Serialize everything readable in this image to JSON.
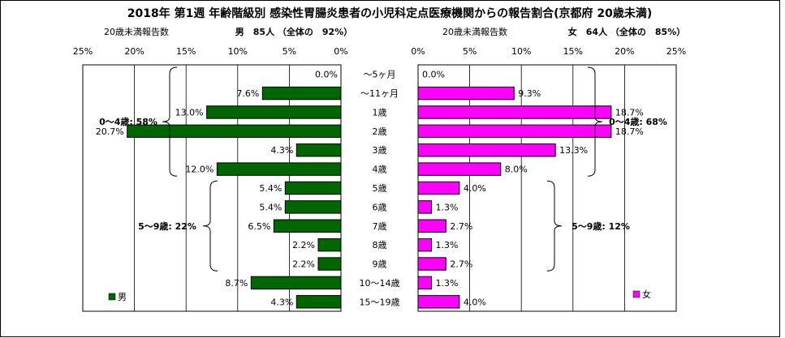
{
  "title": "2018年 第1週 年齢階級別 感染性胃腸炎患者の小児科定点医療機関からの報告割合(京都府 20歳未満)",
  "chart_data": {
    "type": "bar",
    "orientation": "horizontal-butterfly",
    "categories": [
      "～5ヶ月",
      "～11ヶ月",
      "1歳",
      "2歳",
      "3歳",
      "4歳",
      "5歳",
      "6歳",
      "7歳",
      "8歳",
      "9歳",
      "10～14歳",
      "15～19歳"
    ],
    "axis_ticks": [
      "25%",
      "20%",
      "15%",
      "10%",
      "5%",
      "0%"
    ],
    "axis_ticks_right": [
      "0%",
      "5%",
      "10%",
      "15%",
      "20%",
      "25%"
    ],
    "xlim": [
      0,
      25
    ],
    "series": [
      {
        "name": "男",
        "side": "left",
        "header_label": "20歳未満報告数",
        "header_value": "男　85人 （全体の　92%）",
        "color": "#006600",
        "values": [
          0.0,
          7.6,
          13.0,
          20.7,
          4.3,
          12.0,
          5.4,
          5.4,
          6.5,
          2.2,
          2.2,
          8.7,
          4.3
        ],
        "labels": [
          "0.0%",
          "7.6%",
          "13.0%",
          "20.7%",
          "4.3%",
          "12.0%",
          "5.4%",
          "5.4%",
          "6.5%",
          "2.2%",
          "2.2%",
          "8.7%",
          "4.3%"
        ],
        "annotations": [
          "0～4歳: 58%",
          "5～9歳: 22%"
        ]
      },
      {
        "name": "女",
        "side": "right",
        "header_label": "20歳未満報告数",
        "header_value": "女　64人 （全体の　85%）",
        "color": "#ff00ff",
        "values": [
          0.0,
          9.3,
          18.7,
          18.7,
          13.3,
          8.0,
          4.0,
          1.3,
          2.7,
          1.3,
          2.7,
          1.3,
          4.0
        ],
        "labels": [
          "0.0%",
          "9.3%",
          "18.7%",
          "18.7%",
          "13.3%",
          "8.0%",
          "4.0%",
          "1.3%",
          "2.7%",
          "1.3%",
          "2.7%",
          "1.3%",
          "4.0%"
        ],
        "annotations": [
          "0～4歳: 68%",
          "5～9歳: 12%"
        ]
      }
    ]
  }
}
